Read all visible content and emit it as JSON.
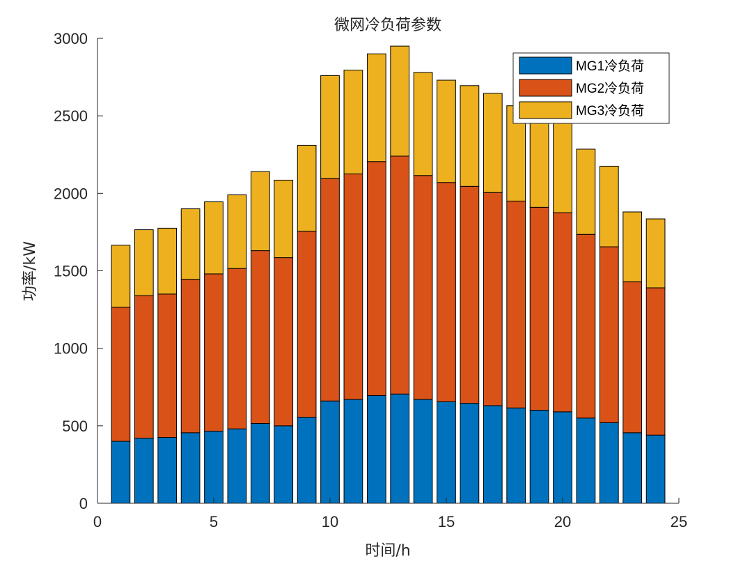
{
  "chart_data": {
    "type": "bar",
    "stacked": true,
    "title": "微网冷负荷参数",
    "xlabel": "时间/h",
    "ylabel": "功率/kW",
    "xlim": [
      0,
      25
    ],
    "ylim": [
      0,
      3000
    ],
    "xticks": [
      0,
      5,
      10,
      15,
      20,
      25
    ],
    "yticks": [
      0,
      500,
      1000,
      1500,
      2000,
      2500,
      3000
    ],
    "legend_position": "top-right",
    "categories": [
      1,
      2,
      3,
      4,
      5,
      6,
      7,
      8,
      9,
      10,
      11,
      12,
      13,
      14,
      15,
      16,
      17,
      18,
      19,
      20,
      21,
      22,
      23,
      24
    ],
    "series": [
      {
        "name": "MG1冷负荷",
        "color": "#0072BD",
        "values": [
          400,
          420,
          425,
          455,
          465,
          480,
          515,
          500,
          555,
          660,
          670,
          695,
          705,
          670,
          655,
          645,
          630,
          615,
          600,
          590,
          550,
          520,
          455,
          440
        ]
      },
      {
        "name": "MG2冷负荷",
        "color": "#D95319",
        "values": [
          865,
          920,
          925,
          990,
          1015,
          1035,
          1115,
          1085,
          1200,
          1435,
          1455,
          1510,
          1535,
          1445,
          1415,
          1400,
          1375,
          1335,
          1310,
          1285,
          1185,
          1135,
          975,
          950
        ]
      },
      {
        "name": "MG3冷负荷",
        "color": "#EDB120",
        "values": [
          400,
          425,
          425,
          455,
          465,
          475,
          510,
          500,
          555,
          665,
          670,
          695,
          710,
          665,
          660,
          650,
          640,
          615,
          595,
          580,
          550,
          520,
          450,
          445
        ]
      }
    ]
  }
}
